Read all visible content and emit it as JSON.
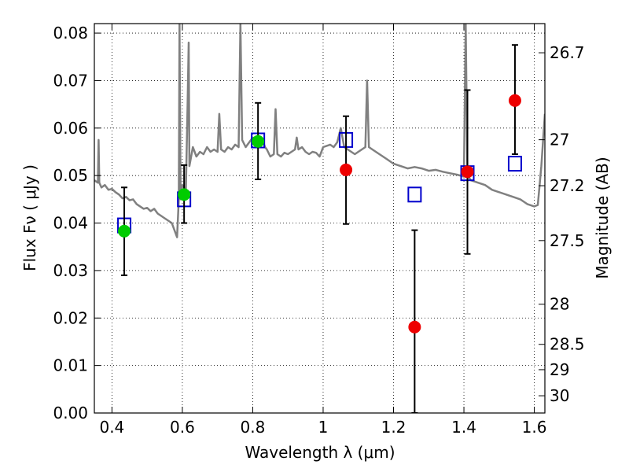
{
  "chart_data": {
    "type": "scatter",
    "title": "",
    "xlabel": "Wavelength  λ (μm)",
    "ylabel": "Flux  Fν  ( μJy )",
    "ylabel_right": "Magnitude (AB)",
    "xlim": [
      0.35,
      1.63
    ],
    "ylim": [
      0.0,
      0.082
    ],
    "grid": true,
    "legend": "none",
    "x_ticks": [
      0.4,
      0.6,
      0.8,
      1.0,
      1.2,
      1.4,
      1.6
    ],
    "x_tick_labels": [
      "0.4",
      "0.6",
      "0.8",
      "1",
      "1.2",
      "1.4",
      "1.6"
    ],
    "y_ticks": [
      0.0,
      0.01,
      0.02,
      0.03,
      0.04,
      0.05,
      0.06,
      0.07,
      0.08
    ],
    "y_tick_labels": [
      "0.00",
      "0.01",
      "0.02",
      "0.03",
      "0.04",
      "0.05",
      "0.06",
      "0.07",
      "0.08"
    ],
    "right_ticks": [
      {
        "mag": 26.7,
        "label": "26.7"
      },
      {
        "mag": 27.0,
        "label": "27"
      },
      {
        "mag": 27.2,
        "label": "27.2"
      },
      {
        "mag": 27.5,
        "label": "27.5"
      },
      {
        "mag": 28.0,
        "label": "28"
      },
      {
        "mag": 28.5,
        "label": "28.5"
      },
      {
        "mag": 29.0,
        "label": "29"
      },
      {
        "mag": 30.0,
        "label": "30"
      }
    ],
    "series": [
      {
        "kind": "model-spectrum",
        "color": "#808080",
        "points": [
          [
            0.35,
            0.049
          ],
          [
            0.36,
            0.0485
          ],
          [
            0.362,
            0.0575
          ],
          [
            0.364,
            0.0485
          ],
          [
            0.37,
            0.0475
          ],
          [
            0.38,
            0.048
          ],
          [
            0.39,
            0.047
          ],
          [
            0.4,
            0.0472
          ],
          [
            0.41,
            0.0465
          ],
          [
            0.42,
            0.046
          ],
          [
            0.43,
            0.0452
          ],
          [
            0.44,
            0.0455
          ],
          [
            0.45,
            0.0448
          ],
          [
            0.46,
            0.045
          ],
          [
            0.47,
            0.044
          ],
          [
            0.48,
            0.0435
          ],
          [
            0.49,
            0.043
          ],
          [
            0.5,
            0.0432
          ],
          [
            0.51,
            0.0425
          ],
          [
            0.52,
            0.043
          ],
          [
            0.53,
            0.042
          ],
          [
            0.54,
            0.0415
          ],
          [
            0.55,
            0.041
          ],
          [
            0.56,
            0.0405
          ],
          [
            0.57,
            0.04
          ],
          [
            0.58,
            0.038
          ],
          [
            0.585,
            0.037
          ],
          [
            0.59,
            0.045
          ],
          [
            0.592,
            0.082
          ],
          [
            0.595,
            0.045
          ],
          [
            0.6,
            0.048
          ],
          [
            0.61,
            0.047
          ],
          [
            0.615,
            0.065
          ],
          [
            0.618,
            0.078
          ],
          [
            0.62,
            0.052
          ],
          [
            0.63,
            0.056
          ],
          [
            0.64,
            0.054
          ],
          [
            0.65,
            0.055
          ],
          [
            0.66,
            0.0545
          ],
          [
            0.67,
            0.056
          ],
          [
            0.68,
            0.055
          ],
          [
            0.69,
            0.0555
          ],
          [
            0.7,
            0.055
          ],
          [
            0.705,
            0.063
          ],
          [
            0.71,
            0.0555
          ],
          [
            0.72,
            0.055
          ],
          [
            0.73,
            0.056
          ],
          [
            0.74,
            0.0555
          ],
          [
            0.75,
            0.0565
          ],
          [
            0.76,
            0.056
          ],
          [
            0.765,
            0.082
          ],
          [
            0.77,
            0.0575
          ],
          [
            0.78,
            0.056
          ],
          [
            0.79,
            0.057
          ],
          [
            0.8,
            0.058
          ],
          [
            0.81,
            0.0575
          ],
          [
            0.82,
            0.058
          ],
          [
            0.83,
            0.057
          ],
          [
            0.835,
            0.056
          ],
          [
            0.84,
            0.0555
          ],
          [
            0.85,
            0.054
          ],
          [
            0.86,
            0.0545
          ],
          [
            0.865,
            0.064
          ],
          [
            0.87,
            0.0545
          ],
          [
            0.88,
            0.054
          ],
          [
            0.89,
            0.0548
          ],
          [
            0.9,
            0.0545
          ],
          [
            0.91,
            0.055
          ],
          [
            0.92,
            0.0555
          ],
          [
            0.925,
            0.058
          ],
          [
            0.93,
            0.0555
          ],
          [
            0.94,
            0.056
          ],
          [
            0.95,
            0.055
          ],
          [
            0.96,
            0.0545
          ],
          [
            0.97,
            0.055
          ],
          [
            0.98,
            0.0548
          ],
          [
            0.99,
            0.054
          ],
          [
            1.0,
            0.056
          ],
          [
            1.02,
            0.0565
          ],
          [
            1.03,
            0.056
          ],
          [
            1.04,
            0.057
          ],
          [
            1.05,
            0.06
          ],
          [
            1.06,
            0.056
          ],
          [
            1.07,
            0.0555
          ],
          [
            1.08,
            0.055
          ],
          [
            1.09,
            0.0545
          ],
          [
            1.1,
            0.055
          ],
          [
            1.12,
            0.056
          ],
          [
            1.125,
            0.07
          ],
          [
            1.13,
            0.056
          ],
          [
            1.14,
            0.0555
          ],
          [
            1.16,
            0.0545
          ],
          [
            1.18,
            0.0535
          ],
          [
            1.2,
            0.0525
          ],
          [
            1.22,
            0.052
          ],
          [
            1.24,
            0.0515
          ],
          [
            1.26,
            0.0518
          ],
          [
            1.28,
            0.0515
          ],
          [
            1.3,
            0.051
          ],
          [
            1.32,
            0.0512
          ],
          [
            1.34,
            0.0508
          ],
          [
            1.36,
            0.0505
          ],
          [
            1.38,
            0.0502
          ],
          [
            1.4,
            0.0498
          ],
          [
            1.405,
            0.082
          ],
          [
            1.41,
            0.05
          ],
          [
            1.42,
            0.049
          ],
          [
            1.44,
            0.0485
          ],
          [
            1.46,
            0.048
          ],
          [
            1.48,
            0.047
          ],
          [
            1.5,
            0.0465
          ],
          [
            1.52,
            0.046
          ],
          [
            1.54,
            0.0455
          ],
          [
            1.56,
            0.045
          ],
          [
            1.58,
            0.044
          ],
          [
            1.6,
            0.0435
          ],
          [
            1.61,
            0.0438
          ],
          [
            1.62,
            0.052
          ],
          [
            1.63,
            0.063
          ]
        ]
      },
      {
        "kind": "model-photometry",
        "color": "#0000cc",
        "marker": "open-square",
        "points": [
          [
            0.435,
            0.0395
          ],
          [
            0.605,
            0.045
          ],
          [
            0.815,
            0.0574
          ],
          [
            1.065,
            0.0575
          ],
          [
            1.26,
            0.046
          ],
          [
            1.41,
            0.0505
          ],
          [
            1.545,
            0.0525
          ]
        ]
      },
      {
        "kind": "observed-detected",
        "color": "#00cc00",
        "marker": "filled-circle",
        "points": [
          {
            "x": 0.435,
            "y": 0.0383,
            "ylo": 0.029,
            "yhi": 0.0475
          },
          {
            "x": 0.605,
            "y": 0.046,
            "ylo": 0.04,
            "yhi": 0.0522
          },
          {
            "x": 0.815,
            "y": 0.0572,
            "ylo": 0.0492,
            "yhi": 0.0653
          }
        ]
      },
      {
        "kind": "observed-marginal",
        "color": "#ee0000",
        "marker": "filled-circle",
        "points": [
          {
            "x": 1.065,
            "y": 0.0512,
            "ylo": 0.0398,
            "yhi": 0.0625
          },
          {
            "x": 1.26,
            "y": 0.0181,
            "ylo": 0.0,
            "yhi": 0.0385
          },
          {
            "x": 1.41,
            "y": 0.0508,
            "ylo": 0.0335,
            "yhi": 0.068
          },
          {
            "x": 1.545,
            "y": 0.0658,
            "ylo": 0.0545,
            "yhi": 0.0775
          }
        ]
      }
    ]
  }
}
